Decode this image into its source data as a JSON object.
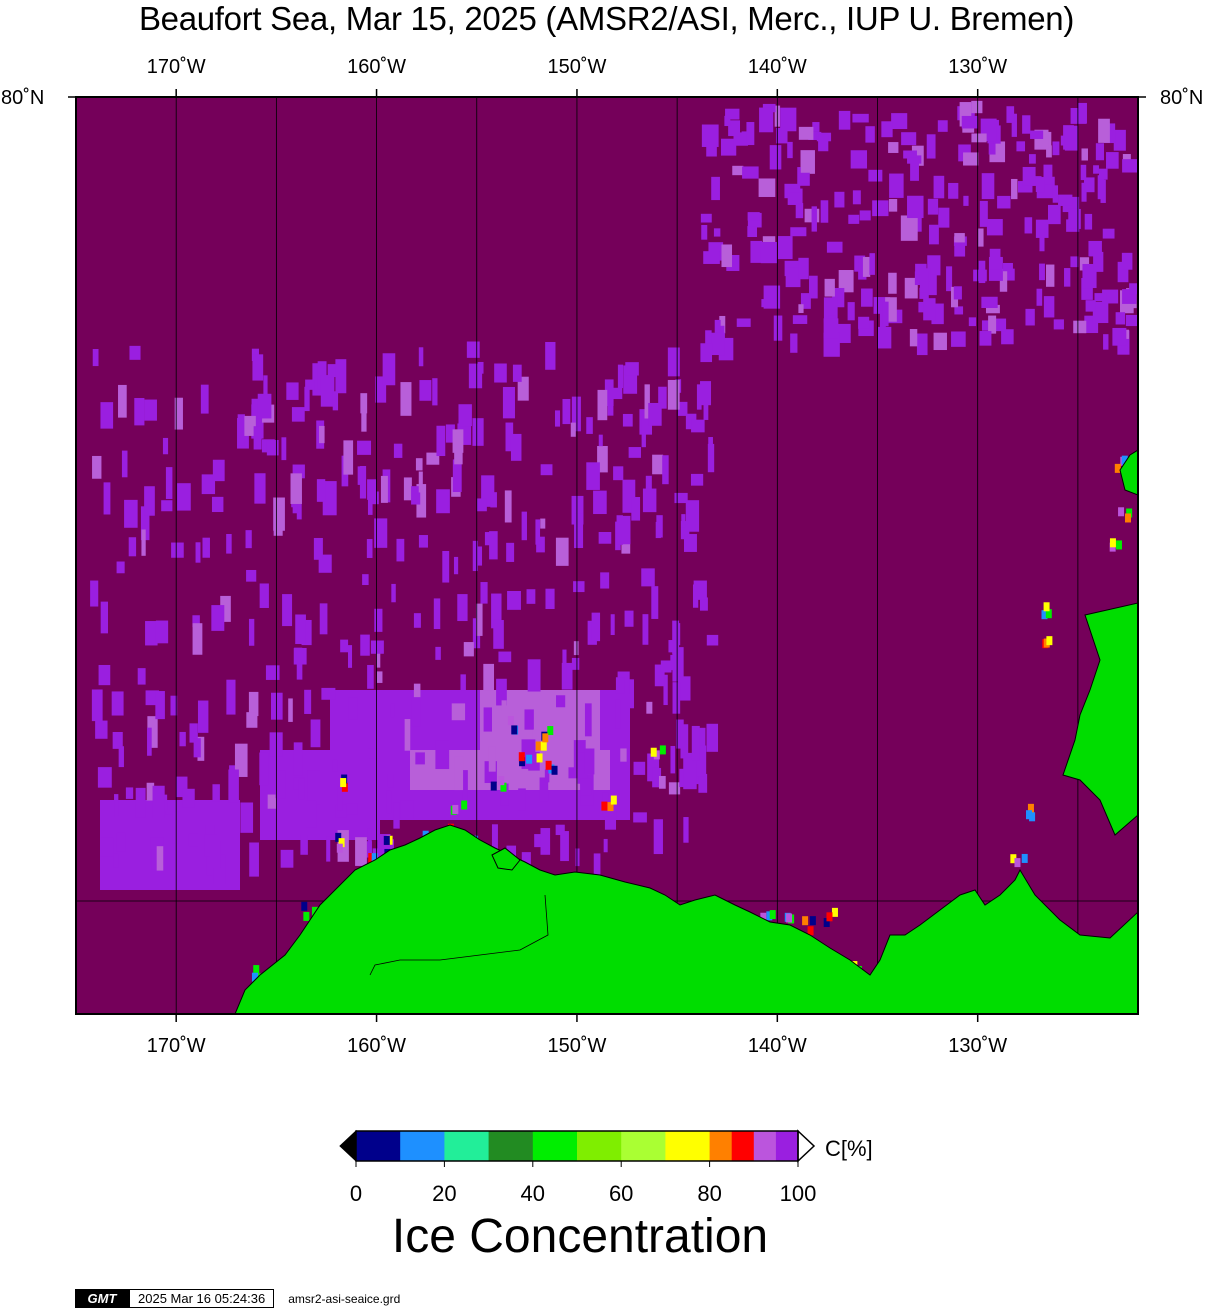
{
  "title": "Beaufort Sea, Mar 15, 2025 (AMSR2/ASI, Merc., IUP U. Bremen)",
  "map": {
    "lon_range": [
      -175,
      -122
    ],
    "lat_top_label": "80˚N",
    "lon_ticks": [
      {
        "lon": -170,
        "label": "170˚W"
      },
      {
        "lon": -160,
        "label": "160˚W"
      },
      {
        "lon": -150,
        "label": "150˚W"
      },
      {
        "lon": -140,
        "label": "140˚W"
      },
      {
        "lon": -130,
        "label": "130˚W"
      }
    ],
    "colors": {
      "ocean_full_ice": "#75005a",
      "land": "#00dd00",
      "high_ice_purple": "#9a1fe0",
      "light_purple": "#b85fd9"
    }
  },
  "colorbar": {
    "unit_label": "C[%]",
    "title": "Ice Concentration",
    "range": [
      0,
      100
    ],
    "tick_labels": [
      "0",
      "20",
      "40",
      "60",
      "80",
      "100"
    ],
    "bins": [
      {
        "from": 0,
        "to": 10,
        "color": "#00008b"
      },
      {
        "from": 10,
        "to": 20,
        "color": "#1e90ff"
      },
      {
        "from": 20,
        "to": 30,
        "color": "#22ee99"
      },
      {
        "from": 30,
        "to": 40,
        "color": "#228b22"
      },
      {
        "from": 40,
        "to": 50,
        "color": "#00ee00"
      },
      {
        "from": 50,
        "to": 60,
        "color": "#7fee00"
      },
      {
        "from": 60,
        "to": 70,
        "color": "#aaff33"
      },
      {
        "from": 70,
        "to": 80,
        "color": "#ffff00"
      },
      {
        "from": 80,
        "to": 85,
        "color": "#ff8000"
      },
      {
        "from": 85,
        "to": 90,
        "color": "#ff0000"
      },
      {
        "from": 90,
        "to": 95,
        "color": "#bb55dd"
      },
      {
        "from": 95,
        "to": 100,
        "color": "#9a1fe0"
      }
    ],
    "under_color": "#000000",
    "over_color": "#ffffff"
  },
  "footer": {
    "logo": "GMT",
    "timestamp": "2025 Mar 16 05:24:36",
    "filename": "amsr2-asi-seaice.grd"
  }
}
